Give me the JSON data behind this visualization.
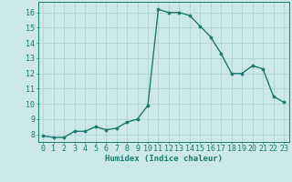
{
  "x": [
    0,
    1,
    2,
    3,
    4,
    5,
    6,
    7,
    8,
    9,
    10,
    11,
    12,
    13,
    14,
    15,
    16,
    17,
    18,
    19,
    20,
    21,
    22,
    23
  ],
  "y": [
    7.9,
    7.8,
    7.8,
    8.2,
    8.2,
    8.5,
    8.3,
    8.4,
    8.8,
    9.0,
    9.9,
    16.2,
    16.0,
    16.0,
    15.8,
    15.1,
    14.4,
    13.3,
    12.0,
    12.0,
    12.5,
    12.3,
    10.5,
    10.1
  ],
  "xlabel": "Humidex (Indice chaleur)",
  "xlim": [
    -0.5,
    23.5
  ],
  "ylim": [
    7.5,
    16.7
  ],
  "yticks": [
    8,
    9,
    10,
    11,
    12,
    13,
    14,
    15,
    16
  ],
  "xticks": [
    0,
    1,
    2,
    3,
    4,
    5,
    6,
    7,
    8,
    9,
    10,
    11,
    12,
    13,
    14,
    15,
    16,
    17,
    18,
    19,
    20,
    21,
    22,
    23
  ],
  "line_color": "#1a7a6e",
  "marker_color": "#1a7a6e",
  "bg_color": "#cce8e8",
  "grid_color": "#aed4d4",
  "axis_color": "#1a7a6e",
  "tick_color": "#1a7a6e",
  "label_fontsize": 6.5,
  "tick_fontsize": 6.0,
  "marker_size": 2.2,
  "line_width": 1.0
}
